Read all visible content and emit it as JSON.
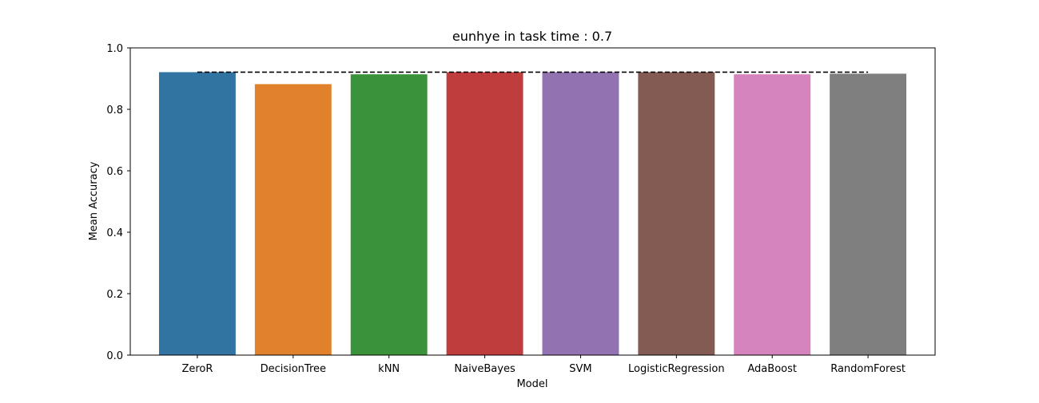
{
  "chart_data": {
    "type": "bar",
    "title": "eunhye in task time : 0.7",
    "xlabel": "Model",
    "ylabel": "Mean Accuracy",
    "ylim": [
      0,
      1.0
    ],
    "yticks": [
      "0.0",
      "0.2",
      "0.4",
      "0.6",
      "0.8",
      "1.0"
    ],
    "categories": [
      "ZeroR",
      "DecisionTree",
      "kNN",
      "NaiveBayes",
      "SVM",
      "LogisticRegression",
      "AdaBoost",
      "RandomForest"
    ],
    "values": [
      0.921,
      0.882,
      0.914,
      0.921,
      0.921,
      0.921,
      0.914,
      0.916
    ],
    "colors": [
      "#3274a1",
      "#e1812c",
      "#3a923a",
      "#c03d3e",
      "#9372b2",
      "#845b53",
      "#d684bd",
      "#7f7f7f"
    ],
    "baseline": {
      "value": 0.921,
      "style": "dashed",
      "color": "#000000"
    },
    "grid": false,
    "legend": "none"
  }
}
